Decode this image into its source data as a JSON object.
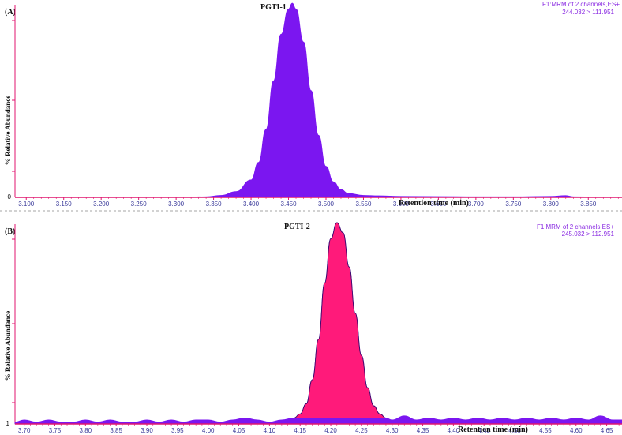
{
  "chart_data": [
    {
      "type": "area",
      "panel_label": "(A)",
      "peak_label": "PGTI-1",
      "info_line1": "F1:MRM of 2 channels,ES+",
      "info_line2": "244.032 > 111.951",
      "xlabel": "Retention time (min)",
      "ylabel": "% Relative Abundance",
      "y_min_label": "0",
      "xlim": [
        3.085,
        3.895
      ],
      "ylim": [
        0,
        100
      ],
      "x_ticks": [
        "3.100",
        "3.150",
        "3.200",
        "3.250",
        "3.300",
        "3.350",
        "3.400",
        "3.450",
        "3.500",
        "3.550",
        "3.600",
        "3.650",
        "3.700",
        "3.750",
        "3.800",
        "3.850"
      ],
      "x_tick_values": [
        3.1,
        3.15,
        3.2,
        3.25,
        3.3,
        3.35,
        3.4,
        3.45,
        3.5,
        3.55,
        3.6,
        3.65,
        3.7,
        3.75,
        3.8,
        3.85
      ],
      "fill_color": "#7b16f0",
      "axis_color": "#e0166f",
      "x": [
        3.085,
        3.3,
        3.34,
        3.36,
        3.38,
        3.4,
        3.41,
        3.42,
        3.43,
        3.44,
        3.45,
        3.455,
        3.46,
        3.47,
        3.48,
        3.49,
        3.5,
        3.51,
        3.52,
        3.53,
        3.55,
        3.57,
        3.6,
        3.65,
        3.7,
        3.75,
        3.8,
        3.82,
        3.83,
        3.895
      ],
      "y": [
        0,
        0,
        0.3,
        1,
        3,
        9,
        18,
        35,
        60,
        84,
        97,
        100,
        97,
        80,
        55,
        32,
        16,
        8,
        4,
        2,
        1,
        0.8,
        0.5,
        0.4,
        0.3,
        0.3,
        0.5,
        0.9,
        0.3,
        0
      ]
    },
    {
      "type": "area",
      "panel_label": "(B)",
      "peak_label": "PGTI-2",
      "info_line1": "F1:MRM of 2 channels,ES+",
      "info_line2": "245.032 > 112.951",
      "xlabel": "Retention time (min)",
      "ylabel": "% Relative Abundance",
      "y_min_label": "1",
      "xlim": [
        3.685,
        4.675
      ],
      "ylim": [
        0,
        100
      ],
      "x_ticks": [
        "3.70",
        "3.75",
        "3.80",
        "3.85",
        "3.90",
        "3.95",
        "4.00",
        "4.05",
        "4.10",
        "4.15",
        "4.20",
        "4.25",
        "4.30",
        "4.35",
        "4.40",
        "4.45",
        "4.50",
        "4.55",
        "4.60",
        "4.65"
      ],
      "x_tick_values": [
        3.7,
        3.75,
        3.8,
        3.85,
        3.9,
        3.95,
        4.0,
        4.05,
        4.1,
        4.15,
        4.2,
        4.25,
        4.3,
        4.35,
        4.4,
        4.45,
        4.5,
        4.55,
        4.6,
        4.65
      ],
      "fill_color": "#ff1a7a",
      "baseline_color": "#7b16f0",
      "axis_color": "#e0166f",
      "x": [
        3.685,
        3.7,
        3.72,
        3.74,
        3.76,
        3.78,
        3.8,
        3.82,
        3.84,
        3.86,
        3.88,
        3.9,
        3.92,
        3.94,
        3.96,
        3.98,
        4.0,
        4.02,
        4.04,
        4.06,
        4.08,
        4.1,
        4.12,
        4.14,
        4.15,
        4.16,
        4.17,
        4.18,
        4.19,
        4.2,
        4.21,
        4.22,
        4.23,
        4.24,
        4.25,
        4.26,
        4.27,
        4.28,
        4.29,
        4.3,
        4.32,
        4.34,
        4.36,
        4.38,
        4.4,
        4.42,
        4.44,
        4.46,
        4.48,
        4.5,
        4.52,
        4.54,
        4.56,
        4.58,
        4.6,
        4.62,
        4.64,
        4.66,
        4.675
      ],
      "y": [
        1,
        2,
        1,
        2,
        1,
        1,
        2,
        1,
        2,
        1,
        1,
        2,
        1,
        2,
        1,
        2,
        2,
        1,
        2,
        3,
        2,
        1,
        2,
        3,
        5,
        10,
        22,
        42,
        70,
        92,
        100,
        95,
        78,
        55,
        34,
        18,
        9,
        5,
        3,
        2,
        4,
        2,
        3,
        2,
        3,
        2,
        3,
        2,
        3,
        2,
        3,
        2,
        3,
        2,
        3,
        2,
        4,
        2,
        2
      ],
      "peak_start": 4.14,
      "peak_end": 4.29
    }
  ]
}
